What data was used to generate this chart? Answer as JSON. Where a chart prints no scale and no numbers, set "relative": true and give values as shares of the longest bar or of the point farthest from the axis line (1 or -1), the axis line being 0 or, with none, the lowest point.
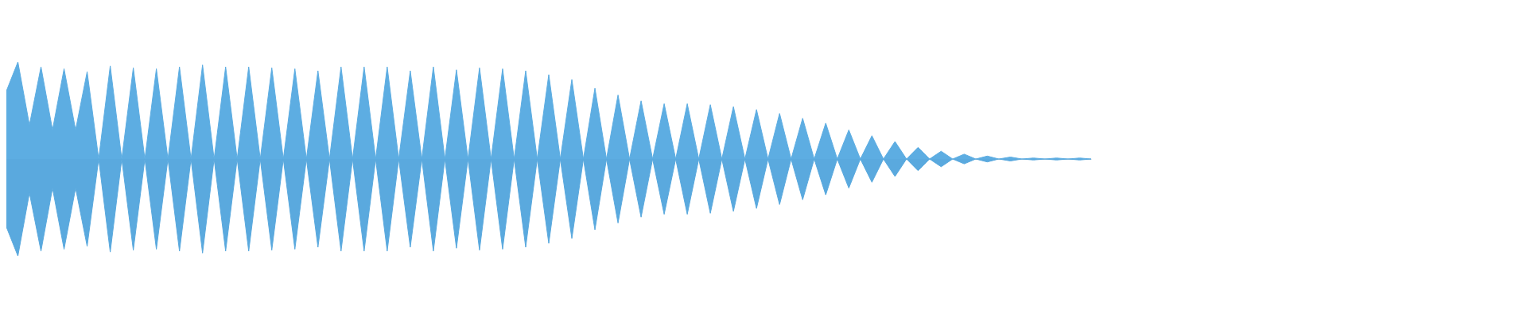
{
  "chart_data": {
    "type": "area",
    "relative": true,
    "categories": [
      null,
      null,
      null,
      null,
      null,
      null,
      null,
      null,
      null,
      null,
      null,
      null,
      null,
      null,
      null,
      null,
      null,
      null,
      null,
      null,
      null,
      null,
      null,
      null,
      null,
      null,
      null,
      null,
      null,
      null,
      null,
      null,
      null,
      null,
      null,
      null,
      null,
      null,
      null,
      null,
      null,
      null,
      null,
      null,
      null,
      null,
      null,
      null,
      null,
      null,
      null,
      null,
      null,
      null,
      null,
      null,
      null,
      null,
      null,
      null,
      null,
      null,
      null,
      null,
      null,
      null,
      null,
      null,
      null,
      null,
      null,
      null,
      null,
      null,
      null,
      null,
      null,
      null,
      null,
      null,
      null,
      null,
      null,
      null,
      null,
      null,
      null,
      null,
      null,
      null,
      null,
      null,
      null,
      null,
      null
    ],
    "series": [
      {
        "color": "#5dade2",
        "values": [
          0.7,
          1,
          0.35,
          0.95,
          0.3,
          0.93,
          0.3,
          0.9,
          0,
          0.96,
          0,
          0.94,
          0,
          0.93,
          0,
          0.95,
          0,
          0.97,
          0,
          0.95,
          0,
          0.95,
          0,
          0.94,
          0,
          0.93,
          0,
          0.91,
          0,
          0.95,
          0,
          0.95,
          0,
          0.95,
          0,
          0.91,
          0,
          0.95,
          0,
          0.92,
          0,
          0.94,
          0,
          0.93,
          0,
          0.91,
          0,
          0.87,
          0,
          0.82,
          0,
          0.73,
          0,
          0.66,
          0,
          0.6,
          0,
          0.57,
          0,
          0.57,
          0,
          0.56,
          0,
          0.54,
          0,
          0.51,
          0,
          0.47,
          0,
          0.42,
          0,
          0.37,
          0,
          0.3,
          0,
          0.24,
          0,
          0.18,
          0,
          0.12,
          0,
          0.08,
          0,
          0.05,
          0,
          0.03,
          0,
          0.02,
          0,
          0.01,
          0,
          0.01,
          0,
          0.01,
          0
        ]
      },
      {
        "color": "#5aa9de",
        "values": [
          -0.7,
          -1,
          -0.35,
          -0.95,
          -0.3,
          -0.93,
          -0.3,
          -0.9,
          0,
          -0.96,
          0,
          -0.94,
          0,
          -0.93,
          0,
          -0.95,
          0,
          -0.97,
          0,
          -0.95,
          0,
          -0.95,
          0,
          -0.94,
          0,
          -0.93,
          0,
          -0.91,
          0,
          -0.95,
          0,
          -0.95,
          0,
          -0.95,
          0,
          -0.91,
          0,
          -0.95,
          0,
          -0.92,
          0,
          -0.94,
          0,
          -0.93,
          0,
          -0.91,
          0,
          -0.87,
          0,
          -0.82,
          0,
          -0.73,
          0,
          -0.66,
          0,
          -0.6,
          0,
          -0.57,
          0,
          -0.57,
          0,
          -0.56,
          0,
          -0.54,
          0,
          -0.51,
          0,
          -0.47,
          0,
          -0.42,
          0,
          -0.37,
          0,
          -0.3,
          0,
          -0.24,
          0,
          -0.18,
          0,
          -0.12,
          0,
          -0.08,
          0,
          -0.05,
          0,
          -0.03,
          0,
          -0.02,
          0,
          -0.01,
          0,
          -0.01,
          0,
          -0.01,
          0
        ]
      }
    ]
  }
}
